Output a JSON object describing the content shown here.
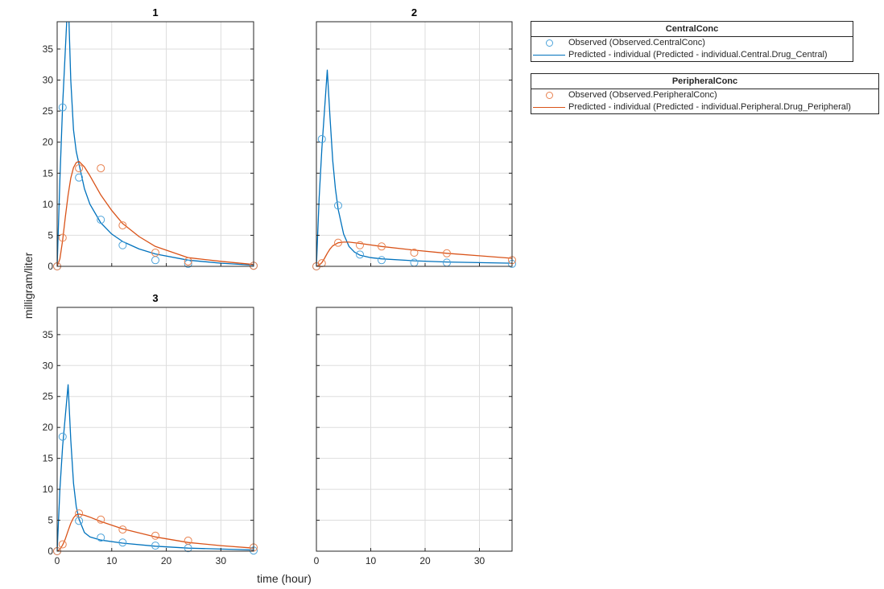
{
  "figure": {
    "ylabel": "milligram/liter",
    "xlabel": "time (hour)",
    "colors": {
      "central": "#0072BD",
      "central_marker": "#4DA3DA",
      "peripheral": "#D95319",
      "peripheral_marker": "#E8804E",
      "grid": "#DDDDDD",
      "axis": "#262626"
    }
  },
  "legends": [
    {
      "title": "CentralConc",
      "entries": [
        {
          "type": "marker",
          "label": "Observed (Observed.CentralConc)"
        },
        {
          "type": "line",
          "label": "Predicted - individual (Predicted - individual.Central.Drug_Central)"
        }
      ]
    },
    {
      "title": "PeripheralConc",
      "entries": [
        {
          "type": "marker",
          "label": "Observed (Observed.PeripheralConc)"
        },
        {
          "type": "line",
          "label": "Predicted - individual (Predicted - individual.Peripheral.Drug_Peripheral)"
        }
      ]
    }
  ],
  "chart_data": [
    {
      "type": "line",
      "title": "1",
      "xlabel": "",
      "ylabel": "milligram/liter",
      "xlim": [
        0,
        36
      ],
      "ylim": [
        0,
        39.4
      ],
      "xticks": [
        0,
        10,
        20,
        30
      ],
      "yticks": [
        0,
        5,
        10,
        15,
        20,
        25,
        30,
        35
      ],
      "show_xticklabels": false,
      "show_yticklabels": true,
      "grid": true,
      "series": [
        {
          "name": "Observed (Observed.CentralConc)",
          "style": "marker",
          "color": "central",
          "x": [
            0,
            1,
            4,
            8,
            12,
            18,
            24,
            36
          ],
          "y": [
            0,
            25.6,
            14.3,
            7.5,
            3.4,
            1.0,
            0.4,
            0.1
          ]
        },
        {
          "name": "Predicted - individual (Predicted - individual.Central.Drug_Central)",
          "style": "line",
          "color": "central",
          "x": [
            0,
            0.5,
            1,
            2,
            2.5,
            3,
            3.5,
            4,
            5,
            6,
            8,
            10,
            12,
            15,
            18,
            24,
            30,
            36
          ],
          "y": [
            0,
            14,
            26,
            44,
            30,
            22,
            18.5,
            16.5,
            12.5,
            10,
            7,
            5.2,
            4.0,
            2.8,
            2.0,
            1.0,
            0.5,
            0.2
          ]
        },
        {
          "name": "Observed (Observed.PeripheralConc)",
          "style": "marker",
          "color": "peripheral",
          "x": [
            0,
            1,
            4,
            8,
            12,
            18,
            24,
            36
          ],
          "y": [
            0,
            4.6,
            15.8,
            15.8,
            6.6,
            2.2,
            0.8,
            0.1
          ]
        },
        {
          "name": "Predicted - individual (Predicted - individual.Peripheral.Drug_Peripheral)",
          "style": "line",
          "color": "peripheral",
          "x": [
            0,
            0.5,
            1,
            1.5,
            2,
            2.5,
            3,
            3.5,
            4,
            5,
            6,
            8,
            10,
            12,
            15,
            18,
            24,
            30,
            36
          ],
          "y": [
            0,
            1.2,
            4.2,
            8,
            11.5,
            14.2,
            15.9,
            16.7,
            16.9,
            16.0,
            14.6,
            11.5,
            9.0,
            6.9,
            4.8,
            3.2,
            1.4,
            0.8,
            0.3
          ]
        }
      ]
    },
    {
      "type": "line",
      "title": "2",
      "xlim": [
        0,
        36
      ],
      "ylim": [
        0,
        39.4
      ],
      "xticks": [
        0,
        10,
        20,
        30
      ],
      "yticks": [
        0,
        5,
        10,
        15,
        20,
        25,
        30,
        35
      ],
      "show_xticklabels": false,
      "show_yticklabels": false,
      "grid": true,
      "series": [
        {
          "name": "Observed (Observed.CentralConc)",
          "style": "marker",
          "color": "central",
          "x": [
            0,
            1,
            4,
            8,
            12,
            18,
            24,
            36
          ],
          "y": [
            0,
            20.5,
            9.8,
            1.9,
            1.0,
            0.6,
            0.6,
            0.4
          ]
        },
        {
          "name": "Predicted - individual (Predicted - individual.Central.Drug_Central)",
          "style": "line",
          "color": "central",
          "x": [
            0,
            0.5,
            1,
            2,
            2.5,
            3,
            3.5,
            4,
            5,
            6,
            7,
            8,
            10,
            12,
            18,
            24,
            36
          ],
          "y": [
            0,
            11,
            19,
            31.6,
            24,
            17,
            12.5,
            9.2,
            5.2,
            3.2,
            2.3,
            1.8,
            1.4,
            1.2,
            0.9,
            0.7,
            0.5
          ]
        },
        {
          "name": "Observed (Observed.PeripheralConc)",
          "style": "marker",
          "color": "peripheral",
          "x": [
            0,
            1,
            4,
            8,
            12,
            18,
            24,
            36
          ],
          "y": [
            0,
            0.5,
            3.8,
            3.4,
            3.2,
            2.2,
            2.1,
            1.0
          ]
        },
        {
          "name": "Predicted - individual (Predicted - individual.Peripheral.Drug_Peripheral)",
          "style": "line",
          "color": "peripheral",
          "x": [
            0,
            0.5,
            1,
            1.5,
            2,
            2.5,
            3,
            4,
            5,
            6,
            8,
            12,
            18,
            24,
            30,
            36
          ],
          "y": [
            0,
            0.2,
            0.6,
            1.3,
            2.1,
            2.8,
            3.3,
            3.8,
            3.9,
            3.9,
            3.7,
            3.2,
            2.6,
            2.1,
            1.7,
            1.3
          ]
        }
      ]
    },
    {
      "type": "line",
      "title": "3",
      "xlabel": "time (hour)",
      "ylabel": "milligram/liter",
      "xlim": [
        0,
        36
      ],
      "ylim": [
        0,
        39.4
      ],
      "xticks": [
        0,
        10,
        20,
        30
      ],
      "yticks": [
        0,
        5,
        10,
        15,
        20,
        25,
        30,
        35
      ],
      "show_xticklabels": true,
      "show_yticklabels": true,
      "grid": true,
      "series": [
        {
          "name": "Observed (Observed.CentralConc)",
          "style": "marker",
          "color": "central",
          "x": [
            0,
            1,
            4,
            8,
            12,
            18,
            24,
            36
          ],
          "y": [
            0,
            18.5,
            4.9,
            2.2,
            1.4,
            0.9,
            0.5,
            0.1
          ]
        },
        {
          "name": "Predicted - individual (Predicted - individual.Central.Drug_Central)",
          "style": "line",
          "color": "central",
          "x": [
            0,
            0.5,
            1,
            2,
            2.5,
            3,
            3.5,
            4,
            5,
            6,
            8,
            12,
            18,
            24,
            36
          ],
          "y": [
            0,
            10,
            17,
            26.9,
            18,
            11,
            7.2,
            5.2,
            3.0,
            2.3,
            1.8,
            1.3,
            0.8,
            0.5,
            0.2
          ]
        },
        {
          "name": "Observed (Observed.PeripheralConc)",
          "style": "marker",
          "color": "peripheral",
          "x": [
            0,
            1,
            4,
            8,
            12,
            18,
            24,
            36
          ],
          "y": [
            0,
            1.1,
            6.1,
            5.1,
            3.5,
            2.5,
            1.7,
            0.6
          ]
        },
        {
          "name": "Predicted - individual (Predicted - individual.Peripheral.Drug_Peripheral)",
          "style": "line",
          "color": "peripheral",
          "x": [
            0,
            0.5,
            1,
            1.5,
            2,
            2.5,
            3,
            3.5,
            4,
            5,
            6,
            8,
            12,
            18,
            24,
            30,
            36
          ],
          "y": [
            0,
            0.3,
            1.0,
            2.0,
            3.3,
            4.5,
            5.4,
            5.9,
            6.0,
            5.8,
            5.5,
            4.8,
            3.6,
            2.3,
            1.4,
            0.9,
            0.5
          ]
        }
      ]
    },
    {
      "type": "line",
      "title": "",
      "xlim": [
        0,
        36
      ],
      "ylim": [
        0,
        39.4
      ],
      "xticks": [
        0,
        10,
        20,
        30
      ],
      "yticks": [
        0,
        5,
        10,
        15,
        20,
        25,
        30,
        35
      ],
      "show_xticklabels": true,
      "show_yticklabels": false,
      "grid": true,
      "series": []
    }
  ]
}
